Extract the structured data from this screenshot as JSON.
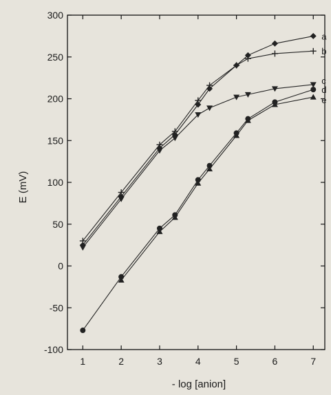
{
  "chart_data": {
    "type": "line",
    "title": "",
    "xlabel": "- log [anion]",
    "ylabel": "E (mV)",
    "xlim": [
      0.6,
      7.3
    ],
    "ylim": [
      -100,
      300
    ],
    "x_ticks": [
      1,
      2,
      3,
      4,
      5,
      6,
      7
    ],
    "y_ticks": [
      -100,
      -50,
      0,
      50,
      100,
      150,
      200,
      250,
      300
    ],
    "grid": false,
    "legend": "right-edge labels",
    "series": [
      {
        "name": "a",
        "marker": "diamond",
        "x": [
          1,
          2,
          3,
          3.4,
          4,
          4.3,
          5,
          5.3,
          6,
          7
        ],
        "y": [
          25,
          83,
          141,
          157,
          193,
          212,
          240,
          252,
          266,
          275
        ]
      },
      {
        "name": "b",
        "marker": "plus",
        "x": [
          1,
          2,
          3,
          3.4,
          4,
          4.3,
          5,
          5.3,
          6,
          7
        ],
        "y": [
          30,
          88,
          145,
          161,
          198,
          216,
          240,
          248,
          254,
          257
        ]
      },
      {
        "name": "c",
        "marker": "triangle-down",
        "x": [
          1,
          2,
          3,
          3.4,
          4,
          4.3,
          5,
          5.3,
          6,
          7
        ],
        "y": [
          22,
          80,
          138,
          153,
          181,
          189,
          202,
          205,
          212,
          217
        ]
      },
      {
        "name": "d",
        "marker": "circle",
        "x": [
          1,
          2,
          3,
          3.4,
          4,
          4.3,
          5,
          5.3,
          6,
          7
        ],
        "y": [
          -77,
          -13,
          45,
          61,
          103,
          120,
          159,
          176,
          196,
          211
        ]
      },
      {
        "name": "e",
        "marker": "triangle-up",
        "x": [
          2,
          3,
          3.4,
          4,
          4.3,
          5,
          5.3,
          6,
          7
        ],
        "y": [
          -17,
          41,
          58,
          99,
          116,
          156,
          174,
          193,
          202
        ]
      }
    ]
  }
}
